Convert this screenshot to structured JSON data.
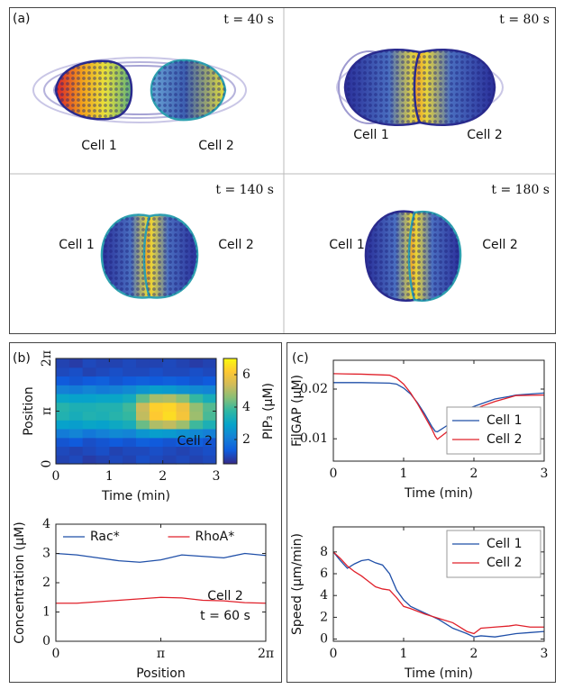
{
  "panel_labels": [
    "(a)",
    "(b)",
    "(c)"
  ],
  "snapshots": [
    {
      "time": "t = 40 s",
      "cells": [
        "Cell 1",
        "Cell 2"
      ]
    },
    {
      "time": "t = 80 s",
      "cells": [
        "Cell 1",
        "Cell 2"
      ]
    },
    {
      "time": "t = 140 s",
      "cells": [
        "Cell 1",
        "Cell 2"
      ]
    },
    {
      "time": "t = 180 s",
      "cells": [
        "Cell 1",
        "Cell 2"
      ]
    }
  ],
  "chart_data": [
    {
      "type": "heatmap",
      "x_label": "Time (min)",
      "y_label": "Position",
      "colorbar_label": "PIP₃ (μM)",
      "annotations": [
        "Cell 2"
      ],
      "x": [
        0.125,
        0.375,
        0.625,
        0.875,
        1.125,
        1.375,
        1.625,
        1.875,
        2.125,
        2.375,
        2.625,
        2.875
      ],
      "y": [
        0.26,
        0.79,
        1.31,
        1.83,
        2.36,
        2.88,
        3.4,
        3.93,
        4.45,
        4.97,
        5.5,
        6.02
      ],
      "z": [
        [
          0.9,
          1.0,
          0.8,
          0.9,
          1.0,
          0.9,
          1.1,
          1.0,
          0.9,
          1.0,
          0.9,
          1.0
        ],
        [
          1.0,
          0.9,
          1.0,
          1.1,
          0.9,
          1.0,
          1.0,
          1.1,
          1.0,
          0.9,
          1.0,
          1.1
        ],
        [
          1.2,
          1.3,
          1.1,
          1.2,
          1.3,
          1.2,
          1.4,
          1.3,
          1.2,
          1.3,
          1.4,
          1.2
        ],
        [
          2.0,
          2.2,
          1.9,
          2.1,
          2.3,
          2.2,
          2.6,
          2.8,
          2.7,
          2.5,
          2.3,
          2.1
        ],
        [
          2.9,
          2.8,
          3.0,
          2.9,
          3.1,
          3.3,
          4.3,
          5.0,
          5.2,
          4.8,
          3.9,
          3.4
        ],
        [
          3.5,
          3.3,
          3.5,
          3.4,
          3.6,
          3.8,
          5.2,
          6.2,
          6.5,
          6.0,
          4.8,
          4.0
        ],
        [
          3.6,
          3.4,
          3.4,
          3.5,
          3.5,
          3.9,
          5.3,
          6.3,
          6.4,
          5.9,
          4.7,
          4.1
        ],
        [
          3.0,
          2.9,
          2.9,
          3.0,
          3.0,
          3.2,
          4.2,
          4.9,
          5.0,
          4.6,
          3.8,
          3.3
        ],
        [
          2.1,
          2.0,
          2.2,
          2.0,
          2.1,
          2.3,
          2.6,
          2.8,
          2.7,
          2.5,
          2.3,
          2.2
        ],
        [
          1.3,
          1.2,
          1.3,
          1.4,
          1.2,
          1.3,
          1.4,
          1.3,
          1.4,
          1.3,
          1.2,
          1.3
        ],
        [
          1.0,
          1.1,
          0.9,
          1.0,
          1.1,
          1.0,
          1.0,
          1.1,
          1.0,
          1.0,
          1.1,
          1.0
        ],
        [
          0.9,
          0.8,
          1.0,
          0.9,
          0.9,
          1.0,
          0.9,
          0.9,
          1.0,
          0.9,
          0.8,
          0.9
        ]
      ],
      "xlim": [
        0,
        3
      ],
      "xticks": [
        0,
        1,
        2,
        3
      ],
      "ylim": [
        0,
        6.28319
      ],
      "yticks": [
        0,
        {
          "value": 3.14159,
          "label": "π"
        },
        {
          "value": 6.28319,
          "label": "2π"
        }
      ],
      "zlim": [
        0.5,
        7
      ],
      "zticks": [
        2,
        4,
        6
      ],
      "colormap": [
        "#352a87",
        "#0f5cdd",
        "#1481d6",
        "#06a4ca",
        "#2eb7a4",
        "#87bf77",
        "#d1bb59",
        "#fec832",
        "#f9fb0e"
      ]
    },
    {
      "type": "line",
      "x_label": "Position",
      "y_label": "Concentration (μM)",
      "annotations": [
        "Cell 2",
        "t = 60 s"
      ],
      "legend": "upper center",
      "legend_frame": false,
      "x": [
        0,
        0.628,
        1.257,
        1.885,
        2.513,
        3.142,
        3.77,
        4.398,
        5.027,
        5.655,
        6.283
      ],
      "series": [
        {
          "name": "Rac*",
          "color": "#1f4fa8",
          "values": [
            3.0,
            2.95,
            2.85,
            2.75,
            2.7,
            2.78,
            2.95,
            2.9,
            2.85,
            3.0,
            2.93
          ]
        },
        {
          "name": "RhoA*",
          "color": "#e0202a",
          "values": [
            1.3,
            1.3,
            1.35,
            1.4,
            1.45,
            1.5,
            1.48,
            1.4,
            1.38,
            1.32,
            1.3
          ]
        }
      ],
      "xlim": [
        0,
        6.28319
      ],
      "xticks": [
        0,
        {
          "value": 3.14159,
          "label": "π"
        },
        {
          "value": 6.28319,
          "label": "2π"
        }
      ],
      "ylim": [
        0,
        4
      ],
      "yticks": [
        0,
        1,
        2,
        3,
        4
      ]
    },
    {
      "type": "line",
      "x_label": "Time (min)",
      "y_label": "FilGAP (μM)",
      "annotations": [],
      "legend": "lower right",
      "legend_frame": true,
      "x": [
        0,
        0.4,
        0.8,
        0.9,
        1.0,
        1.1,
        1.2,
        1.3,
        1.4,
        1.45,
        1.48,
        1.6,
        1.65,
        1.8,
        1.9,
        2.1,
        2.3,
        2.5,
        2.6,
        3.0
      ],
      "series": [
        {
          "name": "Cell 1",
          "color": "#1f4fa8",
          "values": [
            0.0213,
            0.0213,
            0.0212,
            0.021,
            0.0202,
            0.019,
            0.0172,
            0.015,
            0.0125,
            0.0115,
            0.0114,
            0.0125,
            0.013,
            0.015,
            0.016,
            0.017,
            0.018,
            0.0185,
            0.0188,
            0.0192
          ]
        },
        {
          "name": "Cell 2",
          "color": "#e0202a",
          "values": [
            0.0231,
            0.023,
            0.0228,
            0.0222,
            0.021,
            0.0192,
            0.017,
            0.0145,
            0.012,
            0.0105,
            0.0099,
            0.0112,
            0.012,
            0.014,
            0.015,
            0.0165,
            0.0175,
            0.0183,
            0.0187,
            0.0188
          ]
        }
      ],
      "xlim": [
        0,
        3
      ],
      "xticks": [
        0,
        1,
        2,
        3
      ],
      "ylim": [
        0.0055,
        0.0258
      ],
      "yticks": [
        0.01,
        0.02
      ]
    },
    {
      "type": "line",
      "x_label": "Time (min)",
      "y_label": "Speed (μm/min)",
      "annotations": [],
      "legend": "upper right",
      "legend_frame": true,
      "x": [
        0,
        0.1,
        0.2,
        0.3,
        0.4,
        0.5,
        0.6,
        0.7,
        0.8,
        0.9,
        1.0,
        1.1,
        1.3,
        1.5,
        1.7,
        1.9,
        2.0,
        2.1,
        2.3,
        2.5,
        2.6,
        2.8,
        3.0
      ],
      "series": [
        {
          "name": "Cell 1",
          "color": "#1f4fa8",
          "values": [
            8.0,
            7.2,
            6.5,
            6.9,
            7.2,
            7.3,
            7.0,
            6.8,
            6.0,
            4.5,
            3.6,
            3.0,
            2.4,
            1.8,
            1.0,
            0.5,
            0.2,
            0.3,
            0.2,
            0.4,
            0.5,
            0.6,
            0.7
          ]
        },
        {
          "name": "Cell 2",
          "color": "#e0202a",
          "values": [
            8.0,
            7.4,
            6.7,
            6.2,
            5.8,
            5.3,
            4.8,
            4.6,
            4.5,
            3.8,
            3.0,
            2.8,
            2.3,
            1.9,
            1.5,
            0.7,
            0.5,
            1.0,
            1.1,
            1.2,
            1.3,
            1.1,
            1.1
          ]
        }
      ],
      "xlim": [
        0,
        3
      ],
      "xticks": [
        0,
        1,
        2,
        3
      ],
      "ylim": [
        -0.2,
        10.3
      ],
      "yticks": [
        0,
        2,
        4,
        6,
        8
      ]
    }
  ]
}
